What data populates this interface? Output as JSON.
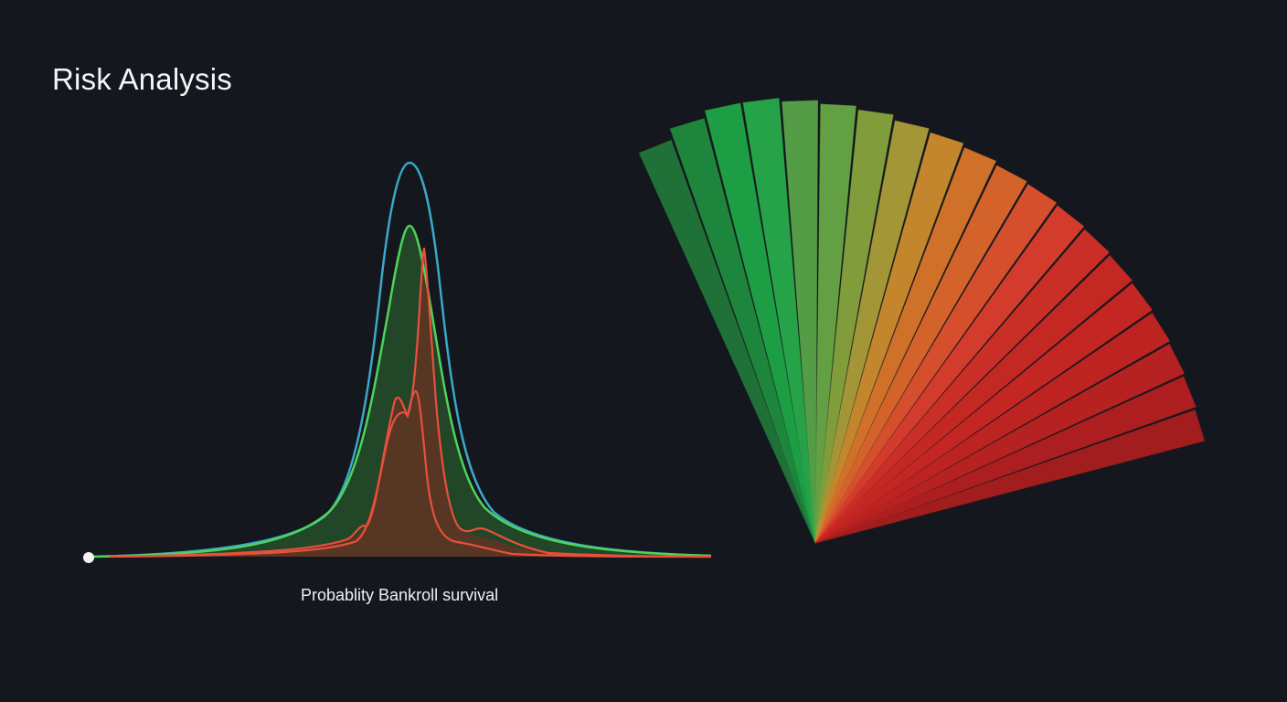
{
  "page": {
    "title": "Risk Analysis",
    "background": "#14171d"
  },
  "distribution_chart": {
    "xlabel": "Probablity Bankroll survival"
  },
  "chart_data": [
    {
      "type": "area",
      "title": "Risk Analysis",
      "xlabel": "Probablity Bankroll survival",
      "ylabel": "",
      "grid": false,
      "legend": null,
      "x_range": [
        0,
        1
      ],
      "series": [
        {
          "name": "blue-outline",
          "color": "#3aa8c8",
          "fill": false,
          "peak_x": 0.51,
          "peak_height": 432,
          "shape": "gaussian-like bell, widest"
        },
        {
          "name": "green",
          "color": "#4fd35a",
          "fill": "#2a5a2e",
          "peak_x": 0.51,
          "peak_height": 362,
          "shape": "bell, slightly narrower than blue"
        },
        {
          "name": "red-sharp",
          "color": "#e8503c",
          "fill": "#6a3422",
          "peak_x": 0.53,
          "peak_height": 340,
          "shape": "narrow spike with shoulder near 0.49 and secondary bump near 0.63"
        },
        {
          "name": "red-bimodal",
          "color": "#e8503c",
          "fill": "#6a3422",
          "peak_x": 0.52,
          "peak_height": 182,
          "shape": "twin peaks at ~0.49 and ~0.52, small bump near 0.44"
        }
      ]
    },
    {
      "type": "fan",
      "title": "",
      "segments": 20,
      "angle_start_deg": -112,
      "angle_end_deg": -17,
      "colors": [
        "#217a3a",
        "#1f8f40",
        "#1faa48",
        "#28b04c",
        "#5aa84a",
        "#6aac46",
        "#8aa83e",
        "#b0a23a",
        "#d2902e",
        "#e07a2a",
        "#e46a2c",
        "#e6552e",
        "#e4402e",
        "#d93228",
        "#d42a24",
        "#d22824",
        "#cc2622",
        "#c42422",
        "#ba2020",
        "#ae1e1e"
      ],
      "lengths": [
        468,
        480,
        488,
        488,
        484,
        480,
        476,
        470,
        466,
        462,
        458,
        456,
        454,
        452,
        450,
        448,
        446,
        444,
        442,
        440
      ]
    }
  ]
}
